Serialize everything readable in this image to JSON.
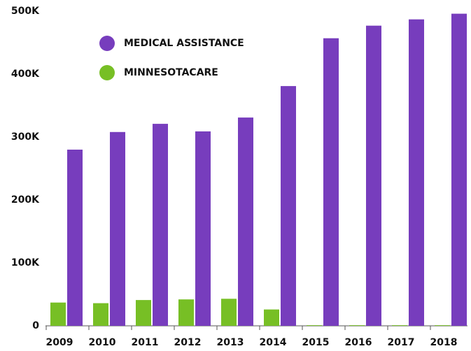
{
  "chart_data": {
    "type": "bar",
    "categories": [
      "2009",
      "2010",
      "2011",
      "2012",
      "2013",
      "2014",
      "2015",
      "2016",
      "2017",
      "2018"
    ],
    "series": [
      {
        "name": "MINNESOTACARE",
        "color": "#77bf25",
        "values": [
          37000,
          36000,
          41000,
          42000,
          43000,
          26000,
          1000,
          1000,
          1000,
          1000
        ]
      },
      {
        "name": "MEDICAL ASSISTANCE",
        "color": "#773dbd",
        "values": [
          280000,
          308000,
          321000,
          309000,
          331000,
          381000,
          457000,
          477000,
          487000,
          496000
        ]
      }
    ],
    "ylim": [
      0,
      500000
    ],
    "yticks": [
      0,
      {
        "value": 100000,
        "label": "100K"
      },
      {
        "value": 200000,
        "label": "200K"
      },
      {
        "value": 300000,
        "label": "300K"
      },
      {
        "value": 400000,
        "label": "400K"
      },
      {
        "value": 500000,
        "label": "500K"
      }
    ],
    "legend_order": [
      1,
      0
    ]
  }
}
